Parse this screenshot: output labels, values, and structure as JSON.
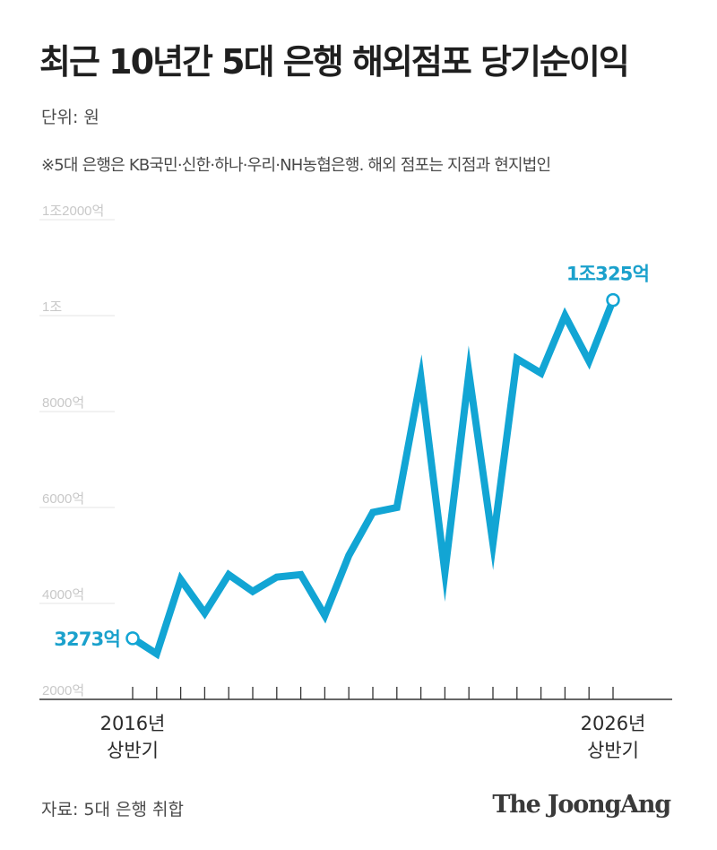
{
  "header": {
    "title": "최근 10년간 5대 은행 해외점포 당기순이익",
    "unit": "단위: 원",
    "note": "※5대 은행은 KB국민·신한·하나·우리·NH농협은행. 해외 점포는 지점과 현지법인"
  },
  "footer": {
    "source": "자료: 5대 은행 취합",
    "logo": "The JoongAng"
  },
  "colors": {
    "line": "#12a5d4",
    "label": "#1ba1cc",
    "grid": "#e6e6e6",
    "axis": "#333333"
  },
  "chart_data": {
    "type": "line",
    "title": "최근 10년간 5대 은행 해외점포 당기순이익",
    "ylabel": "",
    "xlabel": "",
    "ylim": [
      2000,
      12000
    ],
    "yticks": [
      {
        "value": 2000,
        "label": "2000억"
      },
      {
        "value": 4000,
        "label": "4000억"
      },
      {
        "value": 6000,
        "label": "6000억"
      },
      {
        "value": 8000,
        "label": "8000억"
      },
      {
        "value": 10000,
        "label": "1조"
      },
      {
        "value": 12000,
        "label": "1조2000억"
      }
    ],
    "x_labels": [
      {
        "index": 0,
        "line1": "2016년",
        "line2": "상반기"
      },
      {
        "index": 20,
        "line1": "2026년",
        "line2": "상반기"
      }
    ],
    "grid": true,
    "series": [
      {
        "values": [
          3273,
          2950,
          4500,
          3800,
          4600,
          4250,
          4550,
          4600,
          3750,
          5000,
          5900,
          6000,
          8700,
          4650,
          8800,
          5250,
          9100,
          8800,
          10000,
          9050,
          10325
        ]
      }
    ],
    "annotations": [
      {
        "index": 0,
        "text": "3273억",
        "position": "left"
      },
      {
        "index": 20,
        "text": "1조325억",
        "position": "top"
      }
    ]
  }
}
